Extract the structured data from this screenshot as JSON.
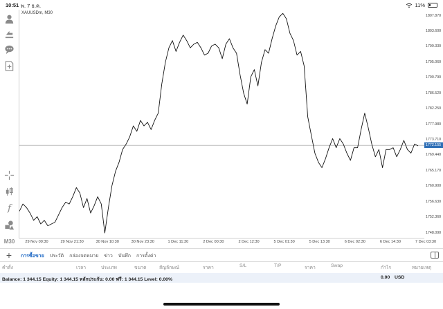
{
  "status_bar": {
    "time": "10:51",
    "date": "พ. 7 ธ.ค.",
    "battery": "11%",
    "wifi_icon": "wifi-icon",
    "battery_icon": "battery-icon"
  },
  "toolbar": {
    "icons": [
      "account-icon",
      "deal-icon",
      "chat-icon",
      "add-chart-icon",
      "crosshair-icon",
      "candlestick-icon",
      "indicator-icon",
      "objects-icon"
    ],
    "timeframe": "M30"
  },
  "chart": {
    "symbol_label": "XAUUSDm, M30",
    "current_price": "1772.155"
  },
  "chart_data": {
    "type": "line",
    "symbol": "XAUUSDm",
    "timeframe": "M30",
    "price_ticks": [
      "1807.870",
      "1803.600",
      "1799.330",
      "1795.060",
      "1790.790",
      "1786.520",
      "1782.250",
      "1777.980",
      "1773.710",
      "1769.440",
      "1765.170",
      "1760.900",
      "1756.630",
      "1752.360",
      "1748.090"
    ],
    "time_ticks": [
      "29 Nov 09:30",
      "29 Nov 21:30",
      "30 Nov 10:30",
      "30 Nov 23:30",
      "1 Dec 11:30",
      "2 Dec 00:30",
      "2 Dec 12:30",
      "5 Dec 01:30",
      "5 Dec 13:30",
      "6 Dec 02:30",
      "6 Dec 14:30",
      "7 Dec 03:30"
    ],
    "ylim": [
      1746.5,
      1809.5
    ],
    "current_price": 1772.155,
    "series": [
      {
        "values": [
          1754.0,
          1756.0,
          1755.0,
          1753.5,
          1751.5,
          1752.5,
          1750.5,
          1751.5,
          1750.0,
          1750.5,
          1751.0,
          1753.0,
          1755.0,
          1756.5,
          1756.0,
          1758.0,
          1760.5,
          1759.0,
          1755.0,
          1757.5,
          1753.5,
          1755.5,
          1758.0,
          1756.0,
          1748.0,
          1755.0,
          1761.0,
          1765.0,
          1767.5,
          1771.0,
          1772.5,
          1774.5,
          1777.5,
          1776.0,
          1779.0,
          1777.5,
          1778.5,
          1776.5,
          1779.0,
          1781.0,
          1789.0,
          1795.0,
          1799.0,
          1801.0,
          1798.0,
          1800.5,
          1802.5,
          1801.0,
          1799.0,
          1800.0,
          1800.5,
          1799.0,
          1797.0,
          1797.5,
          1799.5,
          1800.0,
          1799.0,
          1796.0,
          1800.0,
          1801.5,
          1799.0,
          1797.5,
          1791.5,
          1786.5,
          1783.5,
          1791.0,
          1793.0,
          1788.5,
          1795.0,
          1798.5,
          1797.5,
          1801.5,
          1805.0,
          1807.5,
          1808.5,
          1807.0,
          1803.0,
          1801.0,
          1797.0,
          1798.0,
          1794.0,
          1780.0,
          1775.0,
          1770.0,
          1767.5,
          1766.0,
          1768.5,
          1771.5,
          1774.0,
          1771.5,
          1774.0,
          1772.5,
          1770.0,
          1768.0,
          1771.5,
          1771.5,
          1776.5,
          1781.0,
          1777.0,
          1772.5,
          1769.0,
          1771.0,
          1766.0,
          1771.0,
          1771.0,
          1771.5,
          1769.0,
          1771.0,
          1773.5,
          1771.0,
          1770.0,
          1772.5,
          1772.0
        ]
      }
    ]
  },
  "tabs": [
    "การซื้อขาย",
    "ประวัติ",
    "กล่องจดหมาย",
    "ข่าว",
    "บันทึก",
    "การตั้งค่า"
  ],
  "columns": [
    "คำสั่ง",
    "เวลา",
    "ประเภท",
    "ขนาด",
    "สัญลักษณ์",
    "ราคา",
    "S/L",
    "T/P",
    "ราคา",
    "Swap",
    "กำไร",
    "หมายเหตุ"
  ],
  "balance": {
    "text": "Balance: 1 344.15 Equity: 1 344.15 หลักประกัน: 0.00 ฟรี: 1 344.15 Level: 0.00%",
    "profit": "0.00",
    "currency": "USD"
  }
}
